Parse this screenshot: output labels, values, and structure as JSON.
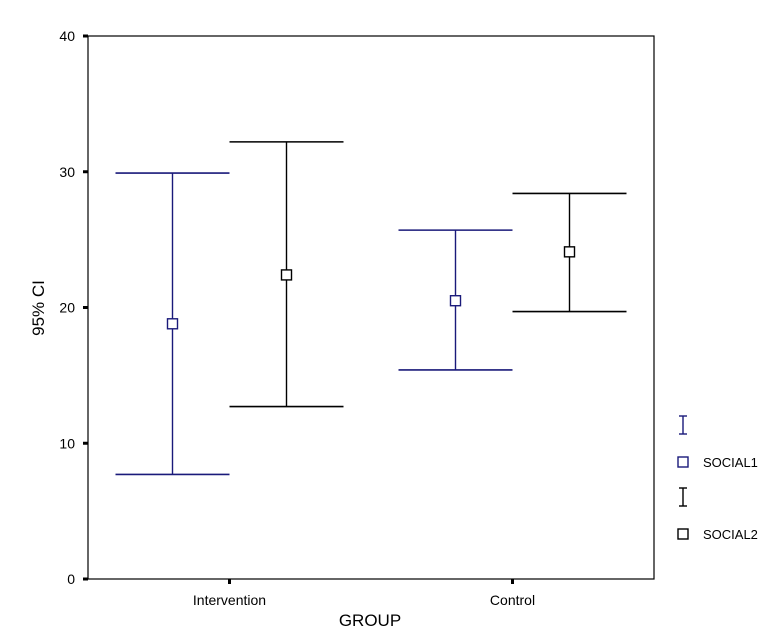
{
  "chart_data": {
    "type": "errorbar",
    "title": "",
    "xlabel": "GROUP",
    "ylabel": "95% CI",
    "ylim": [
      0,
      40
    ],
    "yticks": [
      0,
      10,
      20,
      30,
      40
    ],
    "categories": [
      "Intervention",
      "Control"
    ],
    "grid": false,
    "legend_position": "right",
    "series": [
      {
        "name": "SOCIAL1",
        "color": "#1a1a7a",
        "points": [
          {
            "category": "Intervention",
            "mean": 18.8,
            "lower": 7.7,
            "upper": 29.9
          },
          {
            "category": "Control",
            "mean": 20.5,
            "lower": 15.4,
            "upper": 25.7
          }
        ]
      },
      {
        "name": "SOCIAL2",
        "color": "#000000",
        "points": [
          {
            "category": "Intervention",
            "mean": 22.4,
            "lower": 12.7,
            "upper": 32.2
          },
          {
            "category": "Control",
            "mean": 24.1,
            "lower": 19.7,
            "upper": 28.4
          }
        ]
      }
    ]
  }
}
